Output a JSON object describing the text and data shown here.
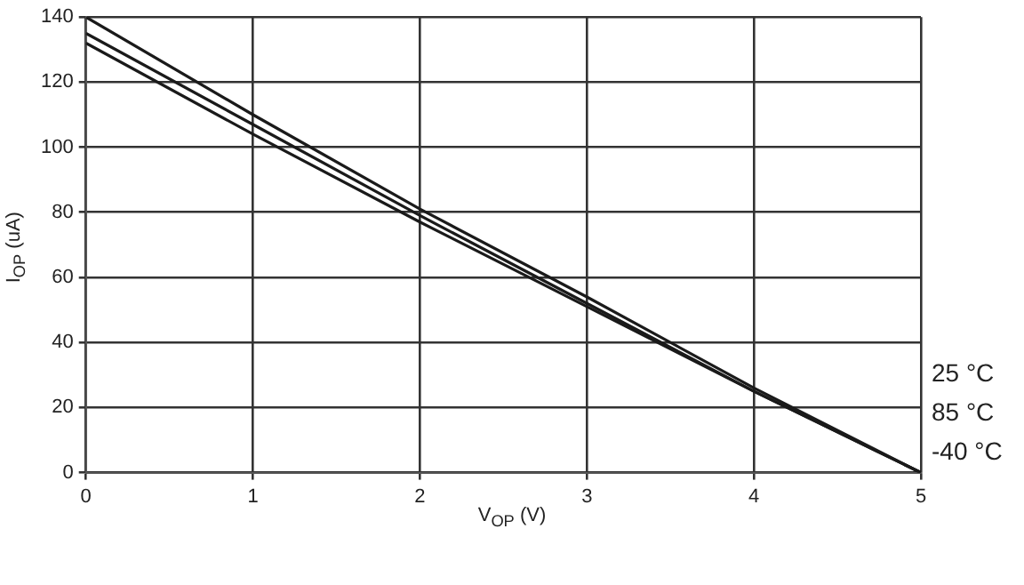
{
  "chart_data": {
    "type": "line",
    "xlabel": "V$_{OP}$ (V)",
    "ylabel": "I$_{OP}$ (uA)",
    "x": [
      0,
      1,
      2,
      3,
      4,
      5
    ],
    "series": [
      {
        "name": "25 °C",
        "color": "#1a1a1a",
        "values": [
          140,
          110,
          81,
          54,
          26,
          0
        ]
      },
      {
        "name": "85 °C",
        "color": "#1a1a1a",
        "values": [
          135,
          107,
          79,
          52,
          25,
          0
        ]
      },
      {
        "name": "-40 °C",
        "color": "#1a1a1a",
        "values": [
          132,
          104,
          77,
          51,
          25,
          0
        ]
      }
    ],
    "xlim": [
      0,
      5
    ],
    "xticks": [
      0,
      1,
      2,
      3,
      4,
      5
    ],
    "ylim": [
      0,
      140
    ],
    "yticks": [
      0,
      20,
      40,
      60,
      80,
      100,
      120,
      140
    ],
    "grid": true,
    "legend": false,
    "marker": "none",
    "line_style": "solid"
  }
}
